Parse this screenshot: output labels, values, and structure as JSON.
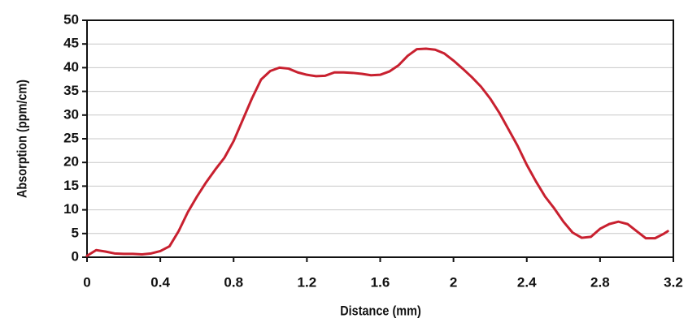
{
  "chart_data": {
    "type": "line",
    "xlabel": "Distance (mm)",
    "ylabel": "Absorption (ppm/cm)",
    "x": [
      0,
      0.05,
      0.1,
      0.15,
      0.2,
      0.25,
      0.3,
      0.35,
      0.4,
      0.45,
      0.5,
      0.55,
      0.6,
      0.65,
      0.7,
      0.75,
      0.8,
      0.85,
      0.9,
      0.95,
      1.0,
      1.05,
      1.1,
      1.15,
      1.2,
      1.25,
      1.3,
      1.35,
      1.4,
      1.45,
      1.5,
      1.55,
      1.6,
      1.65,
      1.7,
      1.75,
      1.8,
      1.85,
      1.9,
      1.95,
      2.0,
      2.05,
      2.1,
      2.15,
      2.2,
      2.25,
      2.3,
      2.35,
      2.4,
      2.45,
      2.5,
      2.55,
      2.6,
      2.65,
      2.7,
      2.75,
      2.8,
      2.85,
      2.9,
      2.95,
      3.0,
      3.05,
      3.1,
      3.15,
      3.17
    ],
    "series": [
      {
        "color": "#c8202f",
        "values": [
          0.3,
          1.5,
          1.2,
          0.8,
          0.7,
          0.7,
          0.6,
          0.8,
          1.3,
          2.3,
          5.5,
          9.5,
          12.8,
          15.8,
          18.5,
          21,
          24.5,
          29,
          33.5,
          37.5,
          39.3,
          40,
          39.8,
          39,
          38.5,
          38.2,
          38.3,
          39,
          39,
          38.9,
          38.7,
          38.4,
          38.5,
          39.2,
          40.5,
          42.5,
          43.9,
          44,
          43.8,
          43,
          41.5,
          39.8,
          38,
          36,
          33.5,
          30.5,
          27,
          23.5,
          19.5,
          16,
          12.8,
          10.3,
          7.5,
          5.2,
          4.1,
          4.3,
          6,
          7,
          7.5,
          7,
          5.5,
          4,
          4,
          5,
          5.5
        ]
      }
    ],
    "xlim": [
      0,
      3.2
    ],
    "xticks": [
      0,
      0.4,
      0.8,
      1.2,
      1.6,
      2,
      2.4,
      2.8,
      3.2
    ],
    "ylim": [
      0,
      50
    ],
    "yticks": [
      0,
      5,
      10,
      15,
      20,
      25,
      30,
      35,
      40,
      45,
      50
    ],
    "grid": true
  }
}
